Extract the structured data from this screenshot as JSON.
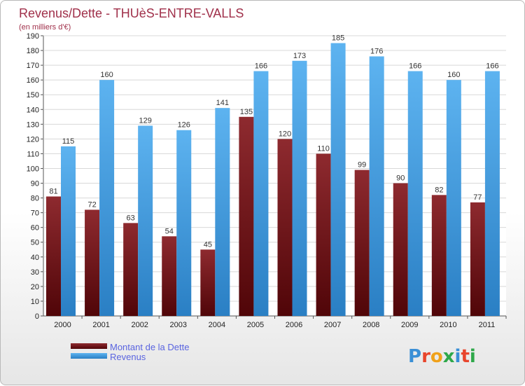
{
  "chart_data": {
    "type": "bar",
    "title": "Revenus/Dette - THUèS-ENTRE-VALLS",
    "subtitle": "(en milliers d'€)",
    "categories": [
      "2000",
      "2001",
      "2002",
      "2003",
      "2004",
      "2005",
      "2006",
      "2007",
      "2008",
      "2009",
      "2010",
      "2011"
    ],
    "series": [
      {
        "name": "Montant de la Dette",
        "color": "#7a1a1f",
        "values": [
          81,
          72,
          63,
          54,
          45,
          135,
          120,
          110,
          99,
          90,
          82,
          77
        ]
      },
      {
        "name": "Revenus",
        "color": "#4aa3e6",
        "values": [
          115,
          160,
          129,
          126,
          141,
          166,
          173,
          185,
          176,
          166,
          160,
          166
        ]
      }
    ],
    "ylim": [
      0,
      190
    ],
    "yticks": [
      0,
      10,
      20,
      30,
      40,
      50,
      60,
      70,
      80,
      90,
      100,
      110,
      120,
      130,
      140,
      150,
      160,
      170,
      180,
      190
    ],
    "grid": true,
    "legend": "bottom-left"
  },
  "brand": "Proxiti"
}
